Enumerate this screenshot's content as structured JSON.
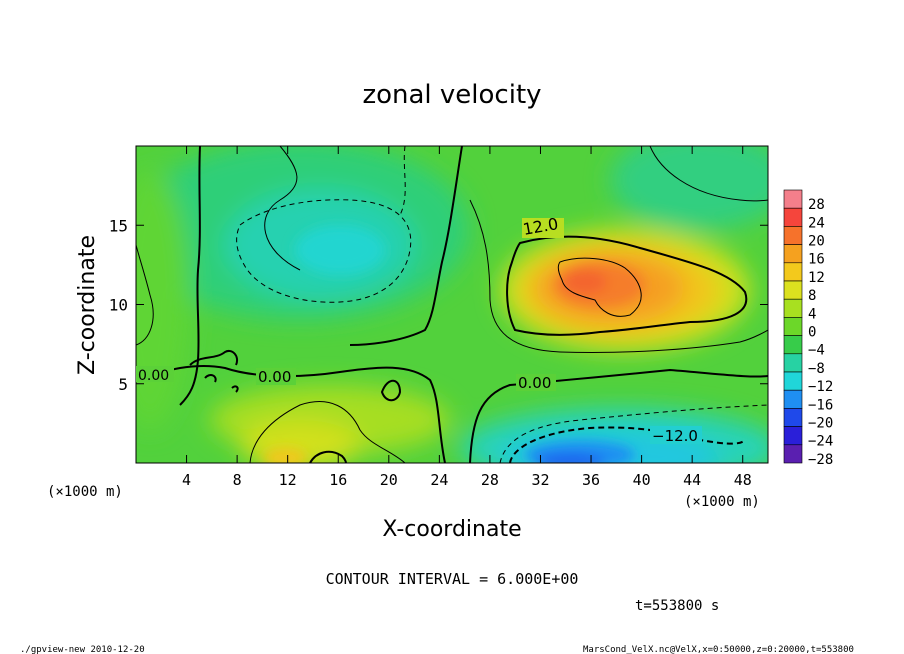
{
  "chart_data": {
    "type": "heatmap",
    "title": "zonal velocity",
    "xlabel": "X-coordinate",
    "ylabel": "Z-coordinate",
    "x_unit_left": "(×1000 m)",
    "x_unit_right": "(×1000 m)",
    "xlim": [
      0,
      50
    ],
    "ylim": [
      0,
      20
    ],
    "x_ticks": [
      "4",
      "8",
      "12",
      "16",
      "20",
      "24",
      "28",
      "32",
      "36",
      "40",
      "44",
      "48"
    ],
    "y_ticks": [
      "5",
      "10",
      "15"
    ],
    "colorbar": {
      "levels": [
        "28",
        "24",
        "20",
        "16",
        "12",
        "8",
        "4",
        "0",
        "−4",
        "−8",
        "−12",
        "−16",
        "−20",
        "−24",
        "−28"
      ],
      "colors": [
        "#f47f8b",
        "#f5453c",
        "#f6722b",
        "#f5a11f",
        "#f3c91c",
        "#dce11f",
        "#a8e020",
        "#6cd729",
        "#37cc4a",
        "#27d2a3",
        "#20d6d9",
        "#1f8ff2",
        "#1f49ea",
        "#2a1fd9",
        "#5a1fb0"
      ]
    },
    "contour_labels": [
      "0.00",
      "0.00",
      "0.00",
      "12.0",
      "−12.0"
    ],
    "contour_interval_text": "CONTOUR INTERVAL = 6.000E+00",
    "time_text": "t=553800 s",
    "features": [
      {
        "name": "positive jet core",
        "x_range": [
          30,
          48
        ],
        "z_range": [
          8,
          16
        ],
        "peak": 20
      },
      {
        "name": "negative lower core",
        "x_range": [
          30,
          50
        ],
        "z_range": [
          0,
          3
        ],
        "min": -20
      },
      {
        "name": "weak negative upper",
        "x_range": [
          8,
          22
        ],
        "z_range": [
          10,
          16
        ],
        "min": -8
      }
    ]
  },
  "footer": {
    "left": "./gpview-new  2010-12-20",
    "right": "MarsCond_VelX.nc@VelX,x=0:50000,z=0:20000,t=553800"
  }
}
